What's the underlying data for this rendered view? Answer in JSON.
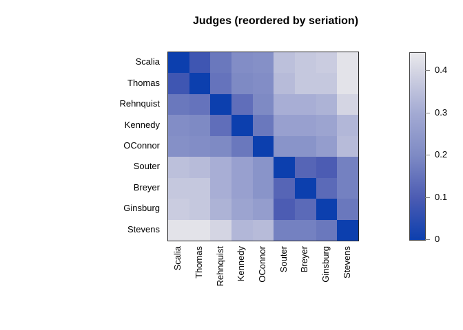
{
  "title": "Judges (reordered by seriation)",
  "chart_data": {
    "type": "heatmap",
    "title": "Judges (reordered by seriation)",
    "rows": [
      "Scalia",
      "Thomas",
      "Rehnquist",
      "Kennedy",
      "OConnor",
      "Souter",
      "Breyer",
      "Ginsburg",
      "Stevens"
    ],
    "columns": [
      "Scalia",
      "Thomas",
      "Rehnquist",
      "Kennedy",
      "OConnor",
      "Souter",
      "Breyer",
      "Ginsburg",
      "Stevens"
    ],
    "matrix": [
      [
        0.0,
        0.08,
        0.16,
        0.21,
        0.22,
        0.35,
        0.37,
        0.38,
        0.43
      ],
      [
        0.08,
        0.0,
        0.15,
        0.2,
        0.21,
        0.34,
        0.37,
        0.37,
        0.43
      ],
      [
        0.16,
        0.15,
        0.0,
        0.14,
        0.2,
        0.31,
        0.31,
        0.32,
        0.4
      ],
      [
        0.21,
        0.2,
        0.14,
        0.0,
        0.16,
        0.27,
        0.27,
        0.28,
        0.33
      ],
      [
        0.22,
        0.21,
        0.2,
        0.16,
        0.0,
        0.23,
        0.23,
        0.26,
        0.34
      ],
      [
        0.35,
        0.34,
        0.31,
        0.27,
        0.23,
        0.0,
        0.12,
        0.1,
        0.18
      ],
      [
        0.37,
        0.37,
        0.31,
        0.27,
        0.23,
        0.12,
        0.0,
        0.13,
        0.18
      ],
      [
        0.38,
        0.37,
        0.32,
        0.28,
        0.26,
        0.1,
        0.13,
        0.0,
        0.16
      ],
      [
        0.43,
        0.43,
        0.4,
        0.33,
        0.34,
        0.18,
        0.18,
        0.16,
        0.0
      ]
    ],
    "colorbar": {
      "min": 0,
      "max": 0.443,
      "tick_values": [
        0,
        0.1,
        0.2,
        0.3,
        0.4
      ],
      "tick_labels": [
        "0",
        "0.1",
        "0.2",
        "0.3",
        "0.4"
      ],
      "position": "right"
    },
    "colormap_anchors": [
      {
        "value": 0.0,
        "color": "#0C3FAE"
      },
      {
        "value": 0.1,
        "color": "#4C5CB3"
      },
      {
        "value": 0.2,
        "color": "#7E8AC4"
      },
      {
        "value": 0.3,
        "color": "#A3AAD3"
      },
      {
        "value": 0.4,
        "color": "#D4D5E3"
      },
      {
        "value": 0.443,
        "color": "#E9E9EC"
      }
    ],
    "grid": false,
    "legend_position": "right"
  }
}
